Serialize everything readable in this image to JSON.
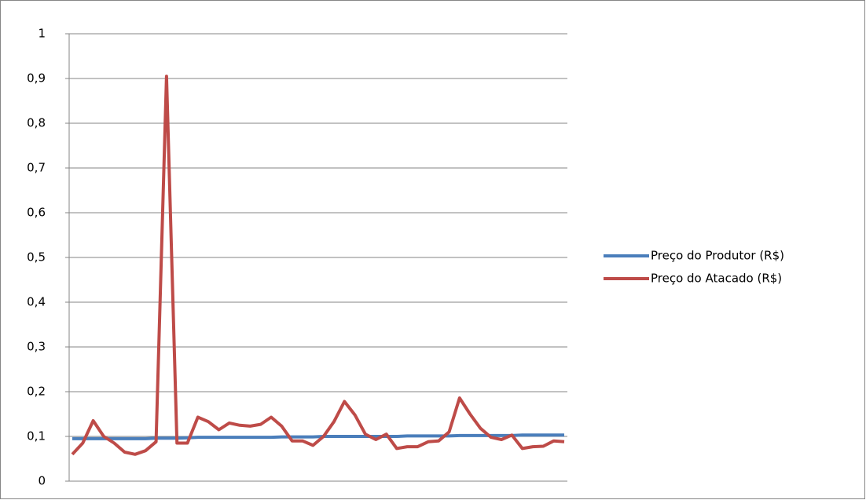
{
  "chart_data": {
    "type": "line",
    "series": [
      {
        "name": "Preço do Produtor (R$)",
        "color": "#4a7ebb",
        "values": [
          0.095,
          0.095,
          0.095,
          0.095,
          0.095,
          0.095,
          0.095,
          0.095,
          0.096,
          0.096,
          0.096,
          0.097,
          0.098,
          0.098,
          0.098,
          0.098,
          0.098,
          0.098,
          0.098,
          0.098,
          0.099,
          0.099,
          0.099,
          0.099,
          0.1,
          0.1,
          0.1,
          0.1,
          0.1,
          0.1,
          0.1,
          0.1,
          0.101,
          0.101,
          0.101,
          0.101,
          0.101,
          0.102,
          0.102,
          0.102,
          0.102,
          0.102,
          0.102,
          0.103,
          0.103,
          0.103,
          0.103,
          0.103
        ]
      },
      {
        "name": "Preço do Atacado (R$)",
        "color": "#be4b48",
        "values": [
          0.06,
          0.085,
          0.135,
          0.1,
          0.085,
          0.065,
          0.06,
          0.068,
          0.088,
          0.905,
          0.085,
          0.085,
          0.143,
          0.133,
          0.115,
          0.13,
          0.125,
          0.123,
          0.127,
          0.143,
          0.123,
          0.09,
          0.09,
          0.08,
          0.1,
          0.133,
          0.178,
          0.148,
          0.105,
          0.093,
          0.105,
          0.073,
          0.077,
          0.077,
          0.088,
          0.09,
          0.11,
          0.186,
          0.15,
          0.118,
          0.098,
          0.093,
          0.103,
          0.073,
          0.077,
          0.078,
          0.09,
          0.088
        ]
      }
    ],
    "ylim": [
      0,
      1
    ],
    "yticks": [
      0,
      {
        "value": 0.1,
        "label": "0,1"
      },
      {
        "value": 0.2,
        "label": "0,2"
      },
      {
        "value": 0.3,
        "label": "0,3"
      },
      {
        "value": 0.4,
        "label": "0,4"
      },
      {
        "value": 0.5,
        "label": "0,5"
      },
      {
        "value": 0.6,
        "label": "0,6"
      },
      {
        "value": 0.7,
        "label": "0,7"
      },
      {
        "value": 0.8,
        "label": "0,8"
      },
      {
        "value": 0.9,
        "label": "0,9"
      },
      1
    ],
    "grid": true,
    "legend": "right"
  }
}
